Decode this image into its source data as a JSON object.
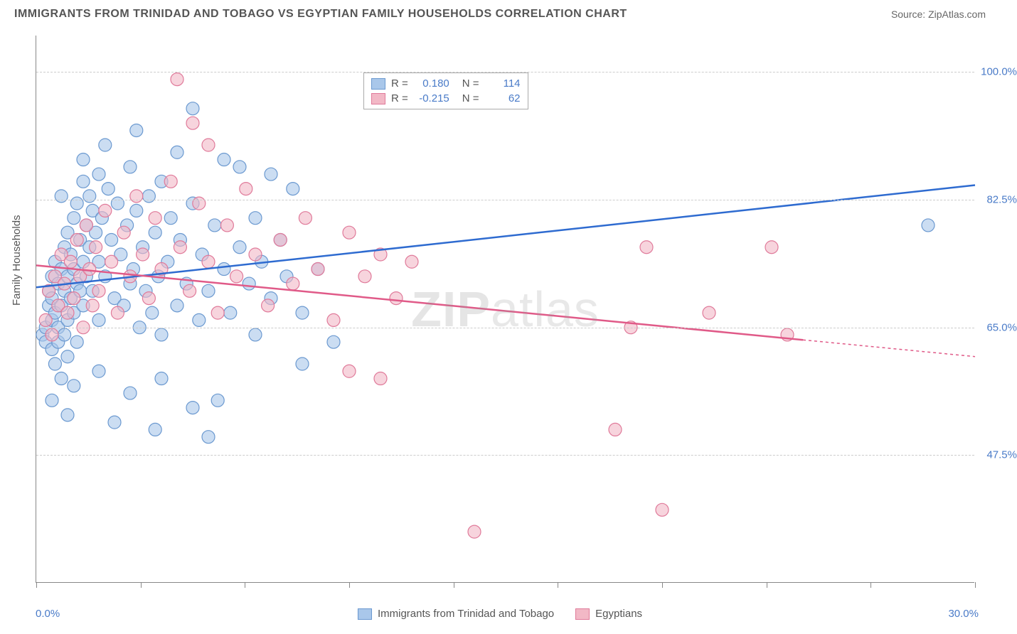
{
  "header": {
    "title": "IMMIGRANTS FROM TRINIDAD AND TOBAGO VS EGYPTIAN FAMILY HOUSEHOLDS CORRELATION CHART",
    "source_prefix": "Source: ",
    "source_name": "ZipAtlas.com"
  },
  "watermark": {
    "bold": "ZIP",
    "thin": "atlas"
  },
  "chart": {
    "type": "scatter",
    "ylabel": "Family Households",
    "x_min": 0.0,
    "x_max": 30.0,
    "y_min": 30.0,
    "y_max": 105.0,
    "y_gridlines": [
      47.5,
      65.0,
      82.5,
      100.0
    ],
    "y_tick_labels": [
      "47.5%",
      "65.0%",
      "82.5%",
      "100.0%"
    ],
    "x_ticks": [
      0,
      3.33,
      6.67,
      10,
      13.33,
      16.67,
      20,
      23.33,
      26.67,
      30
    ],
    "x_min_label": "0.0%",
    "x_max_label": "30.0%",
    "grid_color": "#cccccc",
    "axis_color": "#888888",
    "background_color": "#ffffff",
    "series": [
      {
        "id": "trinidad",
        "label": "Immigrants from Trinidad and Tobago",
        "fill": "#a9c7ea",
        "stroke": "#6b99d0",
        "line_color": "#2e6bd0",
        "marker_radius": 9,
        "marker_opacity": 0.6,
        "R": "0.180",
        "N": "114",
        "trend": {
          "x1": 0,
          "y1": 70.5,
          "x2": 30,
          "y2": 84.5,
          "dashed_from": null
        },
        "points": [
          [
            0.2,
            64
          ],
          [
            0.3,
            65
          ],
          [
            0.3,
            63
          ],
          [
            0.4,
            70
          ],
          [
            0.4,
            68
          ],
          [
            0.5,
            66
          ],
          [
            0.5,
            72
          ],
          [
            0.5,
            62
          ],
          [
            0.5,
            69
          ],
          [
            0.6,
            74
          ],
          [
            0.6,
            67
          ],
          [
            0.6,
            60
          ],
          [
            0.7,
            71
          ],
          [
            0.7,
            65
          ],
          [
            0.7,
            63
          ],
          [
            0.8,
            73
          ],
          [
            0.8,
            68
          ],
          [
            0.8,
            58
          ],
          [
            0.9,
            76
          ],
          [
            0.9,
            70
          ],
          [
            0.9,
            64
          ],
          [
            1.0,
            78
          ],
          [
            1.0,
            72
          ],
          [
            1.0,
            66
          ],
          [
            1.0,
            61
          ],
          [
            1.1,
            75
          ],
          [
            1.1,
            69
          ],
          [
            1.2,
            80
          ],
          [
            1.2,
            73
          ],
          [
            1.2,
            67
          ],
          [
            1.3,
            82
          ],
          [
            1.3,
            71
          ],
          [
            1.3,
            63
          ],
          [
            1.4,
            77
          ],
          [
            1.4,
            70
          ],
          [
            1.5,
            85
          ],
          [
            1.5,
            74
          ],
          [
            1.5,
            68
          ],
          [
            1.6,
            79
          ],
          [
            1.6,
            72
          ],
          [
            1.7,
            83
          ],
          [
            1.7,
            76
          ],
          [
            1.8,
            81
          ],
          [
            1.8,
            70
          ],
          [
            1.9,
            78
          ],
          [
            2.0,
            86
          ],
          [
            2.0,
            74
          ],
          [
            2.0,
            66
          ],
          [
            2.1,
            80
          ],
          [
            2.2,
            72
          ],
          [
            2.3,
            84
          ],
          [
            2.4,
            77
          ],
          [
            2.5,
            69
          ],
          [
            2.6,
            82
          ],
          [
            2.7,
            75
          ],
          [
            2.8,
            68
          ],
          [
            2.9,
            79
          ],
          [
            3.0,
            71
          ],
          [
            3.0,
            87
          ],
          [
            3.1,
            73
          ],
          [
            3.2,
            81
          ],
          [
            3.3,
            65
          ],
          [
            3.4,
            76
          ],
          [
            3.5,
            70
          ],
          [
            3.6,
            83
          ],
          [
            3.7,
            67
          ],
          [
            3.8,
            78
          ],
          [
            3.9,
            72
          ],
          [
            4.0,
            85
          ],
          [
            4.0,
            64
          ],
          [
            4.2,
            74
          ],
          [
            4.3,
            80
          ],
          [
            4.5,
            68
          ],
          [
            4.6,
            77
          ],
          [
            4.8,
            71
          ],
          [
            5.0,
            82
          ],
          [
            5.0,
            95
          ],
          [
            5.2,
            66
          ],
          [
            5.3,
            75
          ],
          [
            5.5,
            70
          ],
          [
            5.7,
            79
          ],
          [
            5.8,
            55
          ],
          [
            6.0,
            73
          ],
          [
            6.0,
            88
          ],
          [
            6.2,
            67
          ],
          [
            6.5,
            76
          ],
          [
            6.8,
            71
          ],
          [
            7.0,
            80
          ],
          [
            7.0,
            64
          ],
          [
            7.2,
            74
          ],
          [
            7.5,
            69
          ],
          [
            7.8,
            77
          ],
          [
            8.0,
            72
          ],
          [
            8.2,
            84
          ],
          [
            8.5,
            67
          ],
          [
            9.0,
            73
          ],
          [
            0.5,
            55
          ],
          [
            1.2,
            57
          ],
          [
            2.0,
            59
          ],
          [
            3.0,
            56
          ],
          [
            4.0,
            58
          ],
          [
            5.0,
            54
          ],
          [
            0.8,
            83
          ],
          [
            1.5,
            88
          ],
          [
            2.2,
            90
          ],
          [
            3.2,
            92
          ],
          [
            4.5,
            89
          ],
          [
            1.0,
            53
          ],
          [
            2.5,
            52
          ],
          [
            3.8,
            51
          ],
          [
            5.5,
            50
          ],
          [
            6.5,
            87
          ],
          [
            7.5,
            86
          ],
          [
            8.5,
            60
          ],
          [
            9.5,
            63
          ],
          [
            28.5,
            79
          ]
        ]
      },
      {
        "id": "egyptians",
        "label": "Egyptians",
        "fill": "#f2b8c6",
        "stroke": "#e07a9a",
        "line_color": "#e05a88",
        "marker_radius": 9,
        "marker_opacity": 0.6,
        "R": "-0.215",
        "N": "62",
        "trend": {
          "x1": 0,
          "y1": 73.5,
          "x2": 30,
          "y2": 61.0,
          "dashed_from": 24.5
        },
        "points": [
          [
            0.3,
            66
          ],
          [
            0.4,
            70
          ],
          [
            0.5,
            64
          ],
          [
            0.6,
            72
          ],
          [
            0.7,
            68
          ],
          [
            0.8,
            75
          ],
          [
            0.9,
            71
          ],
          [
            1.0,
            67
          ],
          [
            1.1,
            74
          ],
          [
            1.2,
            69
          ],
          [
            1.3,
            77
          ],
          [
            1.4,
            72
          ],
          [
            1.5,
            65
          ],
          [
            1.6,
            79
          ],
          [
            1.7,
            73
          ],
          [
            1.8,
            68
          ],
          [
            1.9,
            76
          ],
          [
            2.0,
            70
          ],
          [
            2.2,
            81
          ],
          [
            2.4,
            74
          ],
          [
            2.6,
            67
          ],
          [
            2.8,
            78
          ],
          [
            3.0,
            72
          ],
          [
            3.2,
            83
          ],
          [
            3.4,
            75
          ],
          [
            3.6,
            69
          ],
          [
            3.8,
            80
          ],
          [
            4.0,
            73
          ],
          [
            4.3,
            85
          ],
          [
            4.6,
            76
          ],
          [
            4.9,
            70
          ],
          [
            5.2,
            82
          ],
          [
            5.5,
            74
          ],
          [
            5.8,
            67
          ],
          [
            6.1,
            79
          ],
          [
            6.4,
            72
          ],
          [
            6.7,
            84
          ],
          [
            7.0,
            75
          ],
          [
            7.4,
            68
          ],
          [
            7.8,
            77
          ],
          [
            8.2,
            71
          ],
          [
            8.6,
            80
          ],
          [
            9.0,
            73
          ],
          [
            9.5,
            66
          ],
          [
            10.0,
            78
          ],
          [
            10.5,
            72
          ],
          [
            11.0,
            75
          ],
          [
            11.5,
            69
          ],
          [
            12.0,
            74
          ],
          [
            4.5,
            99
          ],
          [
            5.0,
            93
          ],
          [
            5.5,
            90
          ],
          [
            10.0,
            59
          ],
          [
            11.0,
            58
          ],
          [
            14.0,
            37
          ],
          [
            18.5,
            51
          ],
          [
            19.5,
            76
          ],
          [
            19.0,
            65
          ],
          [
            20.0,
            40
          ],
          [
            21.5,
            67
          ],
          [
            23.5,
            76
          ],
          [
            24.0,
            64
          ]
        ]
      }
    ],
    "legend_labels": {
      "R": "R =",
      "N": "N ="
    }
  }
}
